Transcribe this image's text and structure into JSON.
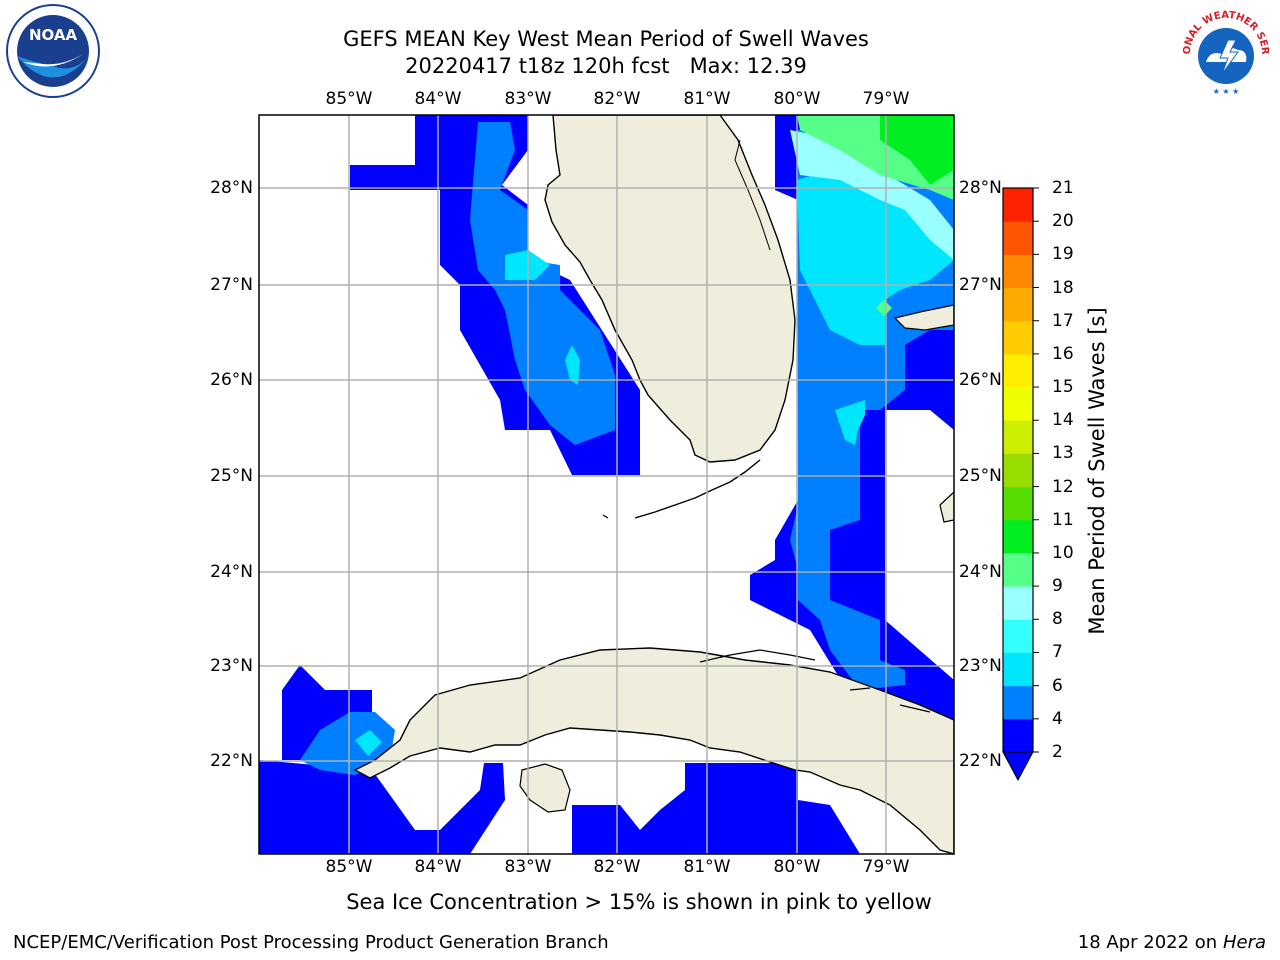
{
  "title": {
    "line1": "GEFS MEAN Key West Mean Period of Swell Waves",
    "line2": "20220417 t18z 120h fcst   Max: 12.39"
  },
  "map": {
    "lon_labels": [
      "85°W",
      "84°W",
      "83°W",
      "82°W",
      "81°W",
      "80°W",
      "79°W"
    ],
    "lat_labels": [
      "28°N",
      "27°N",
      "26°N",
      "25°N",
      "24°N",
      "23°N",
      "22°N"
    ],
    "land_color": "#efeedd",
    "grid_color": "#b0b0b0"
  },
  "colorbar": {
    "label": "Mean Period of Swell Waves [s]",
    "ticks": [
      "2",
      "4",
      "6",
      "7",
      "8",
      "9",
      "10",
      "11",
      "12",
      "13",
      "14",
      "15",
      "16",
      "17",
      "18",
      "19",
      "20",
      "21"
    ],
    "colors": [
      "#0000ff",
      "#0080ff",
      "#00e6ff",
      "#33ffff",
      "#99ffff",
      "#55ff88",
      "#00ee22",
      "#55dd00",
      "#99dd00",
      "#ccee00",
      "#eeff00",
      "#ffee00",
      "#ffcc00",
      "#ffaa00",
      "#ff8800",
      "#ff5500",
      "#ff2200",
      "#ff0000"
    ]
  },
  "footnote": "Sea Ice Concentration > 15% is shown in pink to yellow",
  "credit": "NCEP/EMC/Verification Post Processing Product Generation Branch",
  "datestamp": {
    "prefix": "18 Apr 2022 on ",
    "machine": "Hera"
  },
  "logos": {
    "left": "NOAA",
    "right": "NATIONAL WEATHER SERVICE"
  }
}
